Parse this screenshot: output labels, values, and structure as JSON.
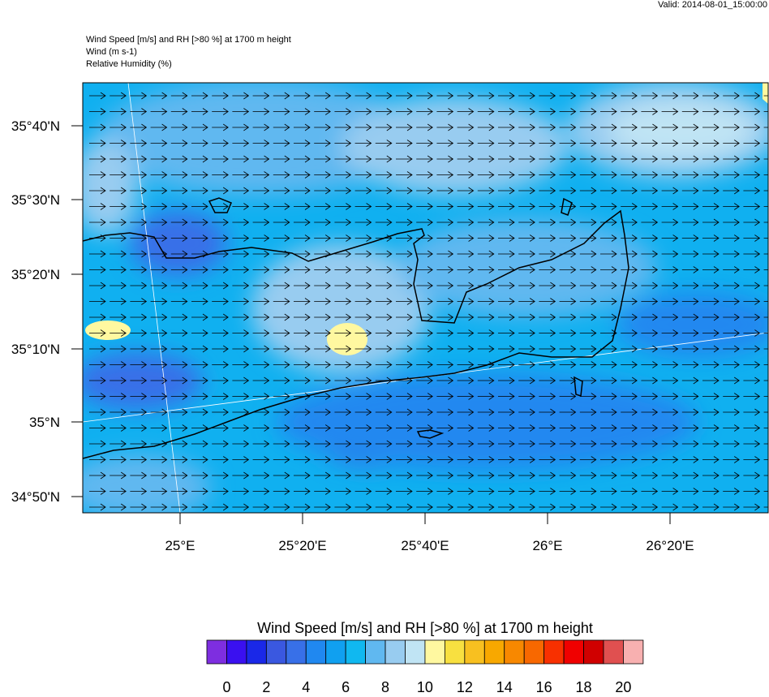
{
  "valid": "Valid: 2014-08-01_15:00:00",
  "header": {
    "lines": [
      "Wind Speed [m/s] and RH [>80 %] at 1700 m height",
      "Wind   (m s-1)",
      "Relative Humidity   (%)"
    ]
  },
  "map": {
    "lat_labels": [
      "35°40'N",
      "35°30'N",
      "35°20'N",
      "35°10'N",
      "35°N",
      "34°50'N"
    ],
    "lon_labels": [
      "25°E",
      "25°20'E",
      "25°40'E",
      "26°E",
      "26°20'E"
    ]
  },
  "colorbar": {
    "title": "Wind Speed [m/s] and RH [>80 %] at 1700 m height",
    "colors": [
      "#7e2ee0",
      "#3a10f0",
      "#1a28e8",
      "#3a58e0",
      "#3870e8",
      "#2088f0",
      "#10a0f0",
      "#10b8f0",
      "#60b8f0",
      "#98ccf0",
      "#c0e4f4",
      "#fff8a0",
      "#f8e040",
      "#f8c020",
      "#f8a800",
      "#f88800",
      "#f86800",
      "#f83000",
      "#f00000",
      "#d00000",
      "#e05050",
      "#f8b0b0"
    ],
    "labels": [
      "0",
      "2",
      "4",
      "6",
      "8",
      "10",
      "12",
      "14",
      "16",
      "18",
      "20"
    ]
  }
}
